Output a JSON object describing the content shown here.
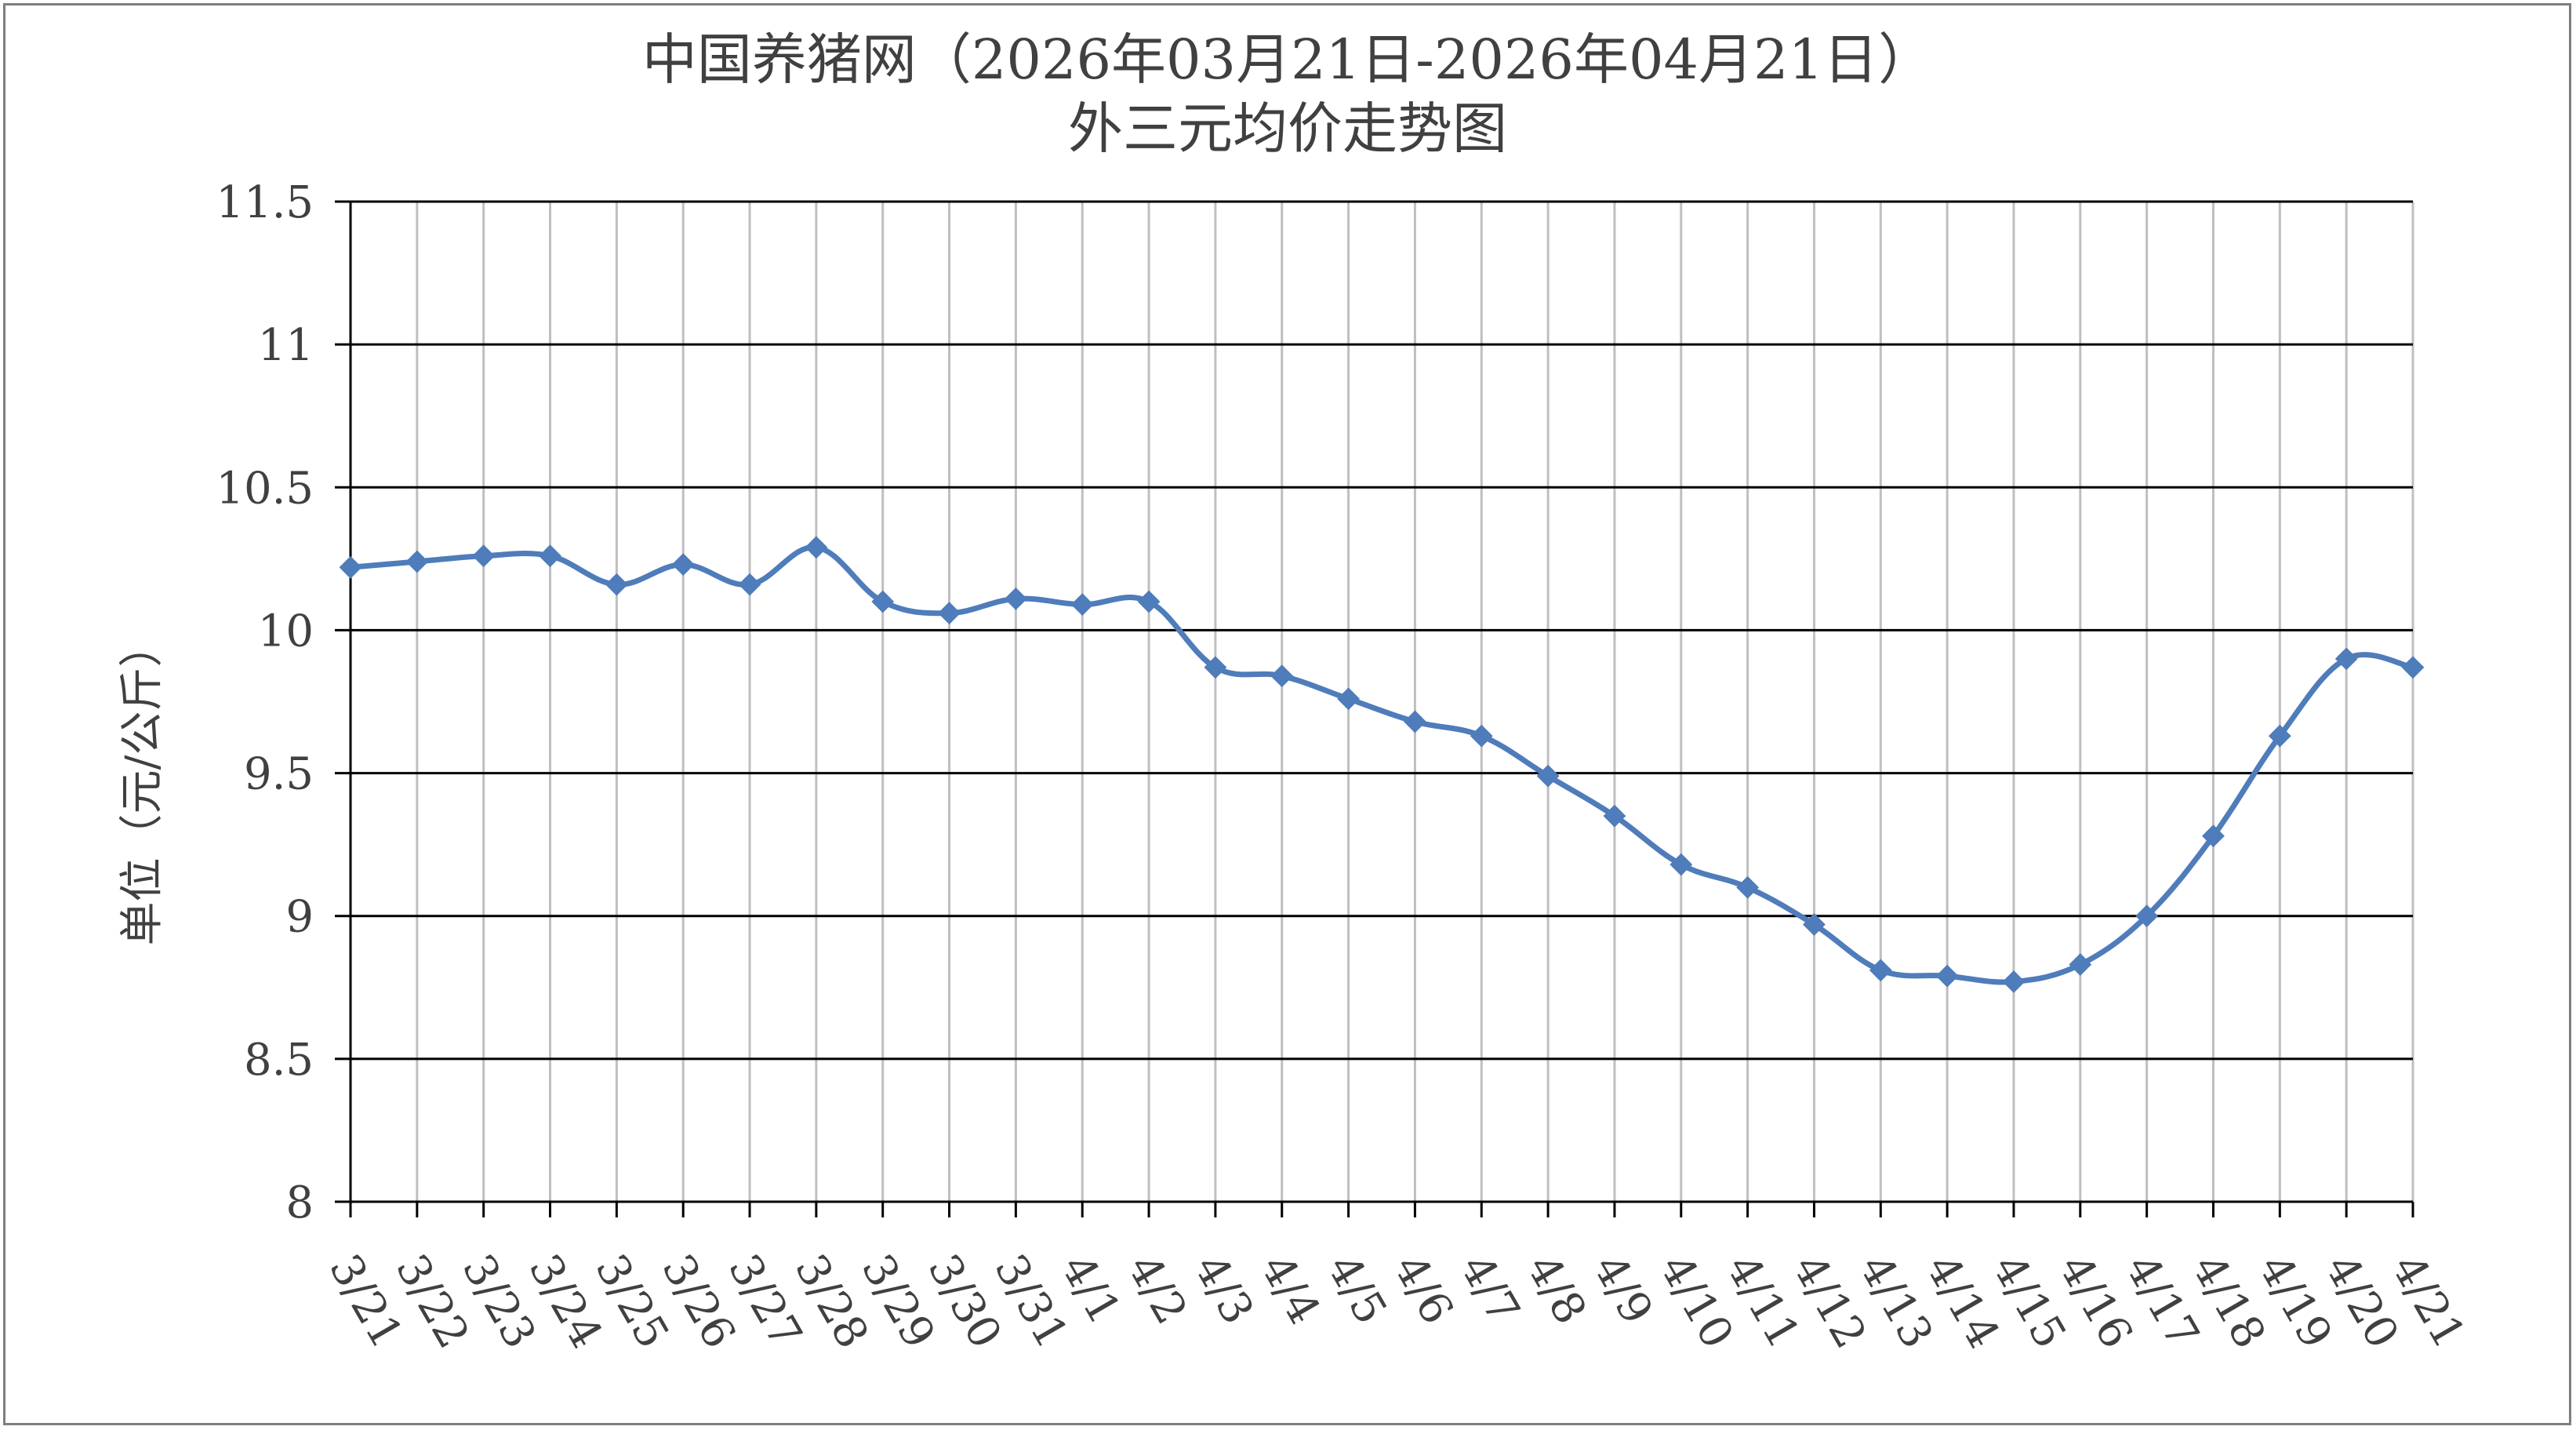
{
  "chart_data": {
    "type": "line",
    "title": "中国养猪网（2026年03月21日-2026年04月21日）",
    "subtitle": "外三元均价走势图",
    "ylabel": "单位（元/公斤）",
    "xlabel": "",
    "ylim": [
      8,
      11.5
    ],
    "yticks": [
      "8",
      "8.5",
      "9",
      "9.5",
      "10",
      "10.5",
      "11",
      "11.5"
    ],
    "categories": [
      "3/21",
      "3/22",
      "3/23",
      "3/24",
      "3/25",
      "3/26",
      "3/27",
      "3/28",
      "3/29",
      "3/30",
      "3/31",
      "4/1",
      "4/2",
      "4/3",
      "4/4",
      "4/5",
      "4/6",
      "4/7",
      "4/8",
      "4/9",
      "4/10",
      "4/11",
      "4/12",
      "4/13",
      "4/14",
      "4/15",
      "4/16",
      "4/17",
      "4/18",
      "4/19",
      "4/20",
      "4/21"
    ],
    "series": [
      {
        "color": "#4f7cba",
        "marker": "diamond",
        "smooth": true,
        "values": [
          10.22,
          10.24,
          10.26,
          10.26,
          10.16,
          10.23,
          10.16,
          10.29,
          10.1,
          10.06,
          10.11,
          10.09,
          10.1,
          9.87,
          9.84,
          9.76,
          9.68,
          9.63,
          9.49,
          9.35,
          9.18,
          9.1,
          8.97,
          8.81,
          8.79,
          8.77,
          8.83,
          9.0,
          9.28,
          9.63,
          9.9,
          9.87
        ]
      }
    ],
    "grid": {
      "horizontal": true,
      "vertical": true
    },
    "colors": {
      "gridline": "#000000",
      "vgridline": "#bfbfbf",
      "axis": "#000000",
      "text": "#404040",
      "border": "#7f7f7f"
    }
  }
}
